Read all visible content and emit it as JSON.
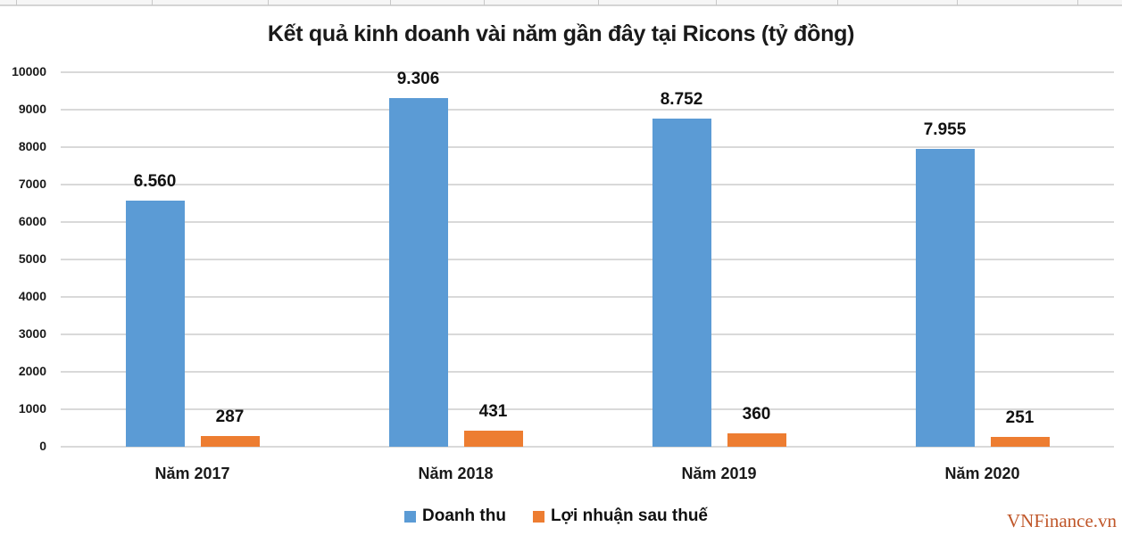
{
  "chart_data": {
    "type": "bar",
    "title": "Kết quả kinh doanh vài năm gần đây tại Ricons (tỷ đồng)",
    "categories": [
      "Năm 2017",
      "Năm 2018",
      "Năm 2019",
      "Năm 2020"
    ],
    "series": [
      {
        "name": "Doanh thu",
        "color": "#5b9bd5",
        "values": [
          6560,
          9306,
          8752,
          7955
        ],
        "labels": [
          "6.560",
          "9.306",
          "8.752",
          "7.955"
        ]
      },
      {
        "name": "Lợi nhuận sau thuế",
        "color": "#ed7d31",
        "values": [
          287,
          431,
          360,
          251
        ],
        "labels": [
          "287",
          "431",
          "360",
          "251"
        ]
      }
    ],
    "xlabel": "",
    "ylabel": "",
    "ylim": [
      0,
      10000
    ],
    "yticks": [
      "0",
      "1000",
      "2000",
      "3000",
      "4000",
      "5000",
      "6000",
      "7000",
      "8000",
      "9000",
      "10000"
    ],
    "grid": true,
    "legend_position": "bottom"
  },
  "watermark": "VNFinance.vn"
}
